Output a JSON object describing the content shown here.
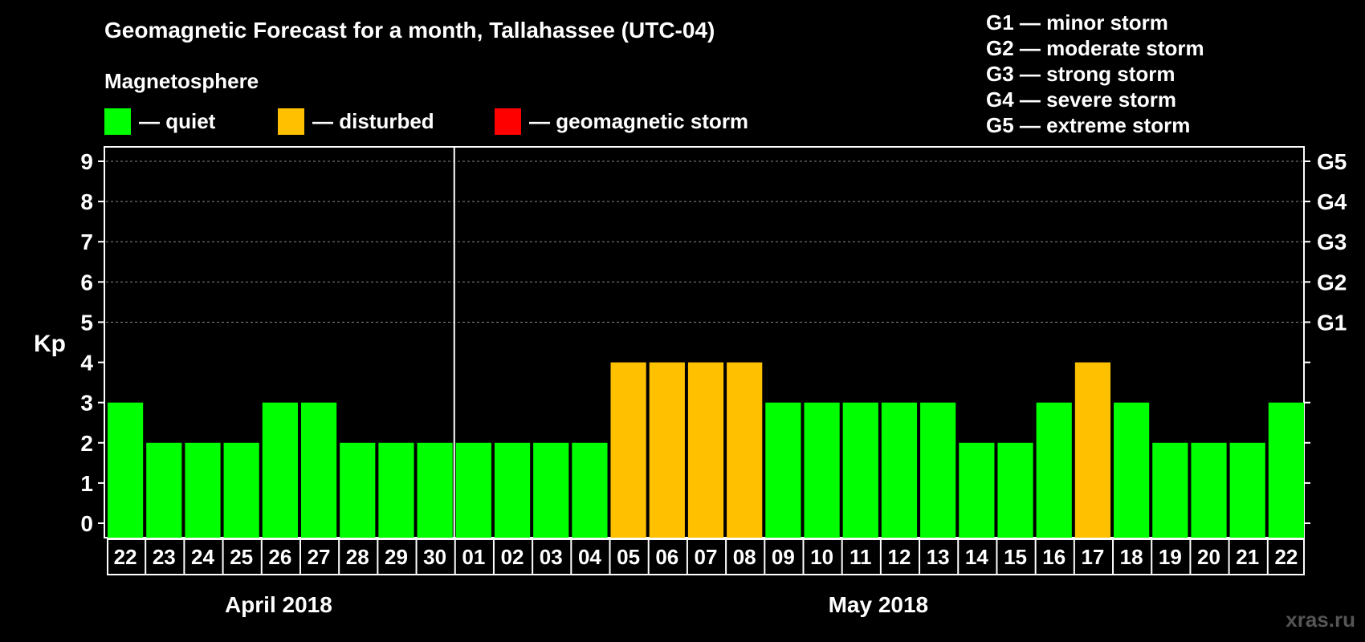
{
  "title": "Geomagnetic Forecast for a month, Tallahassee (UTC-04)",
  "legend": {
    "heading": "Magnetosphere",
    "items": [
      {
        "label": "— quiet",
        "color": "#00ff00"
      },
      {
        "label": "— disturbed",
        "color": "#ffc000"
      },
      {
        "label": "— geomagnetic storm",
        "color": "#ff0000"
      }
    ]
  },
  "storm_scale": [
    {
      "label": "G1 — minor storm"
    },
    {
      "label": "G2 — moderate storm"
    },
    {
      "label": "G3 — strong storm"
    },
    {
      "label": "G4 — severe storm"
    },
    {
      "label": "G5 — extreme storm"
    }
  ],
  "watermark": "xras.ru",
  "chart_data": {
    "type": "bar",
    "ylabel": "Kp",
    "ylim": [
      0,
      9
    ],
    "yticks": [
      "0",
      "1",
      "2",
      "3",
      "4",
      "5",
      "6",
      "7",
      "8",
      "9"
    ],
    "right_ticks": [
      {
        "value": 5,
        "label": "G1"
      },
      {
        "value": 6,
        "label": "G2"
      },
      {
        "value": 7,
        "label": "G3"
      },
      {
        "value": 8,
        "label": "G4"
      },
      {
        "value": 9,
        "label": "G5"
      }
    ],
    "categories": [
      "22",
      "23",
      "24",
      "25",
      "26",
      "27",
      "28",
      "29",
      "30",
      "01",
      "02",
      "03",
      "04",
      "05",
      "06",
      "07",
      "08",
      "09",
      "10",
      "11",
      "12",
      "13",
      "14",
      "15",
      "16",
      "17",
      "18",
      "19",
      "20",
      "21",
      "22"
    ],
    "values": [
      3,
      2,
      2,
      2,
      3,
      3,
      2,
      2,
      2,
      2,
      2,
      2,
      2,
      4,
      4,
      4,
      4,
      3,
      3,
      3,
      3,
      3,
      2,
      2,
      3,
      4,
      3,
      2,
      2,
      2,
      3
    ],
    "status": [
      "quiet",
      "quiet",
      "quiet",
      "quiet",
      "quiet",
      "quiet",
      "quiet",
      "quiet",
      "quiet",
      "quiet",
      "quiet",
      "quiet",
      "quiet",
      "disturbed",
      "disturbed",
      "disturbed",
      "disturbed",
      "quiet",
      "quiet",
      "quiet",
      "quiet",
      "quiet",
      "quiet",
      "quiet",
      "quiet",
      "disturbed",
      "quiet",
      "quiet",
      "quiet",
      "quiet",
      "quiet"
    ],
    "status_colors": {
      "quiet": "#00ff00",
      "disturbed": "#ffc000",
      "storm": "#ff0000"
    },
    "months": [
      {
        "label": "April 2018",
        "count": 9
      },
      {
        "label": "May 2018",
        "count": 22
      }
    ],
    "grid": true
  }
}
